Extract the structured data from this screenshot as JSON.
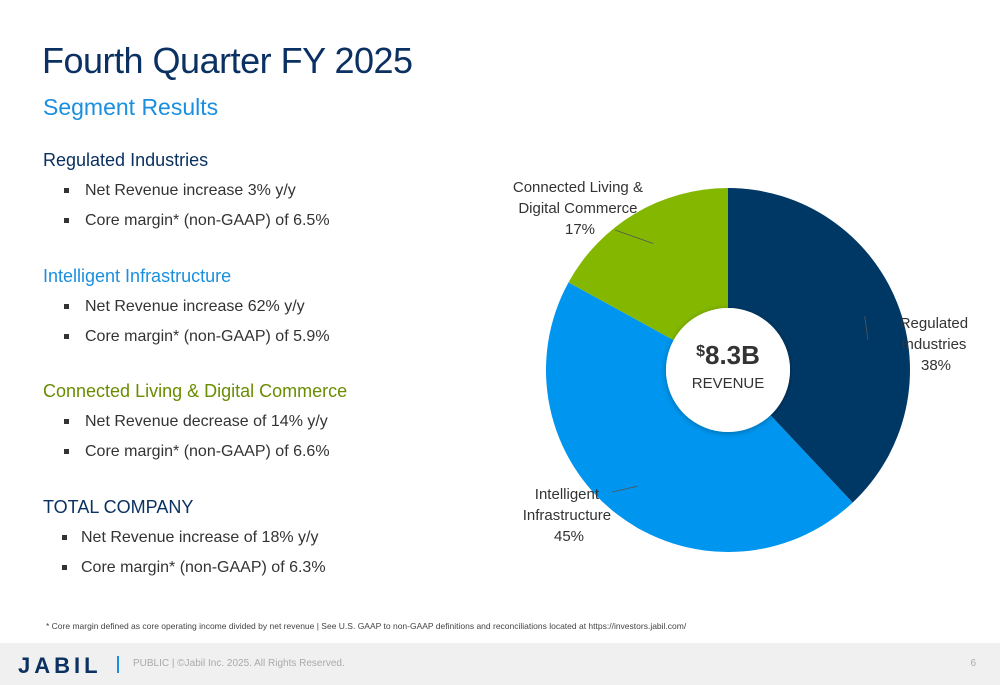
{
  "title": "Fourth Quarter FY 2025",
  "subtitle": "Segment Results",
  "segments": [
    {
      "name": "Regulated Industries",
      "color": "#0a3161",
      "bullets": [
        "Net Revenue increase 3% y/y",
        "Core margin* (non-GAAP) of 6.5%"
      ]
    },
    {
      "name": "Intelligent Infrastructure",
      "color": "#1a8fe0",
      "bullets": [
        "Net Revenue increase 62% y/y",
        "Core margin* (non-GAAP) of 5.9%"
      ]
    },
    {
      "name": "Connected Living & Digital Commerce",
      "color": "#6a8c00",
      "bullets": [
        "Net Revenue decrease of 14% y/y",
        "Core margin* (non-GAAP) of 6.6%"
      ]
    },
    {
      "name": "TOTAL COMPANY",
      "color": "#0a3161",
      "bullets": [
        "Net Revenue increase of 18% y/y",
        "Core margin* (non-GAAP) of 6.3%"
      ]
    }
  ],
  "chart_data": {
    "type": "pie",
    "center_currency": "$",
    "center_value": "8.3B",
    "center_label": "REVENUE",
    "slices": [
      {
        "label_lines": [
          "Regulated",
          "Industries"
        ],
        "percent_label": "38%",
        "value": 38,
        "color": "#003865"
      },
      {
        "label_lines": [
          "Intelligent",
          "Infrastructure"
        ],
        "percent_label": "45%",
        "value": 45,
        "color": "#0095ee"
      },
      {
        "label_lines": [
          "Connected Living &",
          "Digital Commerce"
        ],
        "percent_label": "17%",
        "value": 17,
        "color": "#84b800"
      }
    ]
  },
  "footnote": "* Core margin defined as core operating income divided by net revenue  |   See U.S. GAAP to non-GAAP definitions and  reconciliations located at https://investors.jabil.com/",
  "footer": {
    "logo": "JABIL",
    "text": "PUBLIC   |   ©Jabil Inc. 2025. All Rights Reserved.",
    "page_number": "6"
  }
}
